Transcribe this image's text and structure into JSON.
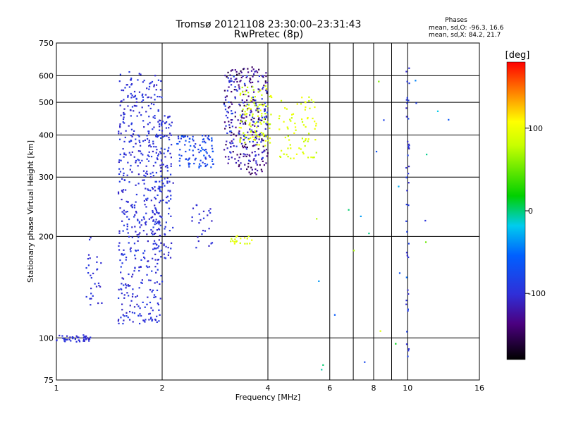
{
  "header": {
    "title": "Tromsø 20121108 23:30:00–23:31:43",
    "subtitle": "RwPretec (8p)"
  },
  "stats": {
    "heading": "Phases",
    "line_o": "mean, sd,O: -96.3, 16.6",
    "line_x": "mean, sd,X:  84.2, 21.7"
  },
  "colorbar": {
    "label": "[deg]",
    "ticks": [
      "100",
      "0",
      "-100"
    ],
    "tick_values": [
      100,
      0,
      -100
    ],
    "range": [
      -180,
      180
    ]
  },
  "chart_data": {
    "type": "scatter",
    "xlabel": "Frequency [MHz]",
    "ylabel": "Stationary phase Virtual Height [km]",
    "xscale": "log",
    "yscale": "log",
    "xlim": [
      1,
      16
    ],
    "ylim": [
      75,
      750
    ],
    "xticks": [
      1,
      2,
      4,
      6,
      8,
      10,
      16
    ],
    "xtick_labels": [
      "1",
      "2",
      "4",
      "6",
      "8",
      "10",
      "16"
    ],
    "yticks": [
      75,
      100,
      200,
      300,
      400,
      500,
      600,
      750
    ],
    "ytick_labels": [
      "75",
      "100",
      "200",
      "300",
      "400",
      "500",
      "600",
      "750"
    ],
    "grid": true,
    "clusters": [
      {
        "xr": [
          1.0,
          1.25
        ],
        "yr": [
          97,
          102
        ],
        "n": 45,
        "ph": [
          -110,
          -90
        ]
      },
      {
        "xr": [
          1.2,
          1.35
        ],
        "yr": [
          125,
          200
        ],
        "n": 30,
        "ph": [
          -110,
          -90
        ]
      },
      {
        "xr": [
          1.5,
          2.0
        ],
        "yr": [
          110,
          620
        ],
        "n": 520,
        "ph": [
          -110,
          -85
        ]
      },
      {
        "xr": [
          1.9,
          2.15
        ],
        "yr": [
          170,
          460
        ],
        "n": 130,
        "ph": [
          -110,
          -85
        ]
      },
      {
        "xr": [
          2.2,
          2.8
        ],
        "yr": [
          320,
          400
        ],
        "n": 95,
        "ph": [
          -100,
          -60
        ]
      },
      {
        "xr": [
          2.4,
          2.8
        ],
        "yr": [
          180,
          250
        ],
        "n": 25,
        "ph": [
          -110,
          -90
        ]
      },
      {
        "xr": [
          3.0,
          4.0
        ],
        "yr": [
          305,
          640
        ],
        "n": 230,
        "ph": [
          -160,
          -110
        ]
      },
      {
        "xr": [
          3.0,
          4.0
        ],
        "yr": [
          330,
          600
        ],
        "n": 110,
        "ph": [
          -110,
          -80
        ]
      },
      {
        "xr": [
          3.3,
          4.1
        ],
        "yr": [
          370,
          560
        ],
        "n": 100,
        "ph": [
          70,
          105
        ]
      },
      {
        "xr": [
          4.3,
          5.5
        ],
        "yr": [
          340,
          520
        ],
        "n": 75,
        "ph": [
          75,
          105
        ]
      },
      {
        "xr": [
          3.1,
          3.6
        ],
        "yr": [
          190,
          205
        ],
        "n": 20,
        "ph": [
          80,
          100
        ]
      },
      {
        "xr": [
          9.9,
          10.1
        ],
        "yr": [
          80,
          650
        ],
        "n": 45,
        "ph": [
          -110,
          -80
        ]
      },
      {
        "xr": [
          5.5,
          15
        ],
        "yr": [
          80,
          650
        ],
        "n": 25,
        "ph": [
          -110,
          110
        ]
      }
    ]
  }
}
